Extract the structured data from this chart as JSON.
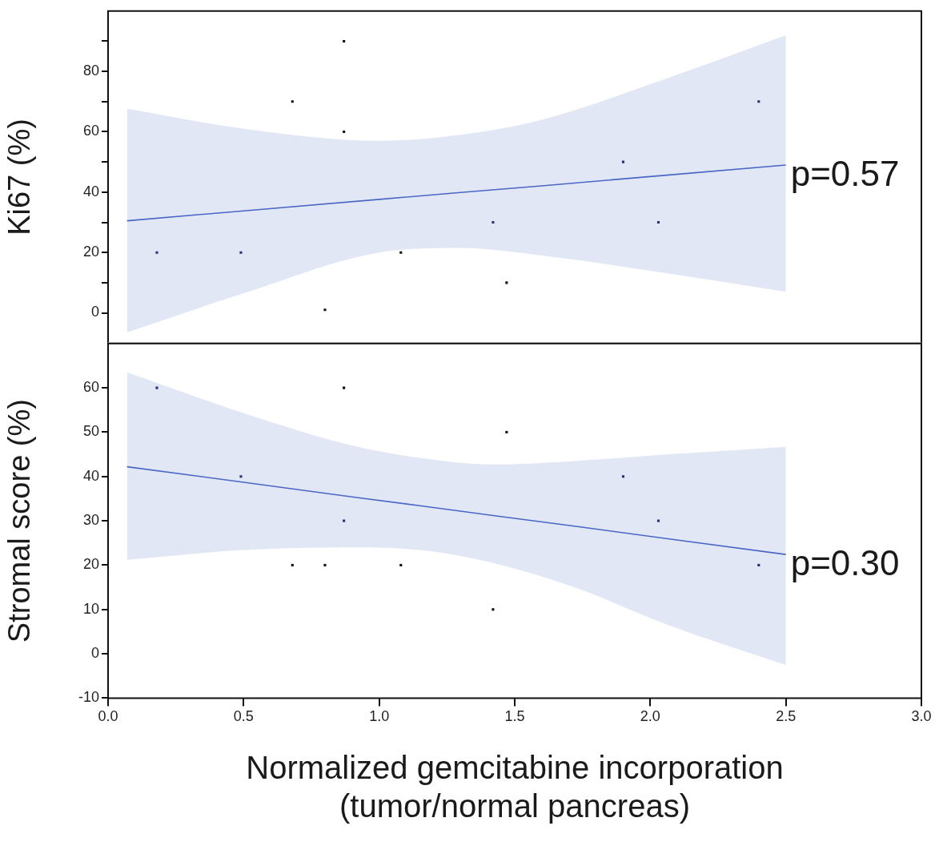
{
  "chart_data": [
    {
      "type": "scatter",
      "ylabel": "Ki67 (%)",
      "xlim": [
        0,
        3
      ],
      "ylim": [
        -10,
        100
      ],
      "yticks": [
        0,
        {
          "value": 10,
          "label": null
        },
        20,
        {
          "value": 30,
          "label": null
        },
        40,
        {
          "value": 50,
          "label": null
        },
        60,
        {
          "value": 70,
          "label": null
        },
        80,
        {
          "value": 90,
          "label": null
        }
      ],
      "tick_labels": "y",
      "grid": false,
      "legend": false,
      "series": [
        {
          "marker": "square",
          "x": [
            0.18,
            0.49,
            0.68,
            0.87,
            0.87,
            0.8,
            1.08,
            1.42,
            1.47,
            1.9,
            2.03,
            2.4
          ],
          "values": [
            20,
            20,
            70,
            90,
            60,
            1,
            20,
            30,
            10,
            50,
            30,
            70
          ],
          "colors": [
            "#2a2f7a",
            "#2a2f7a",
            "#111111",
            "#111111",
            "#111111",
            "#111111",
            "#111111",
            "#2a2f7a",
            "#111111",
            "#2a2f7a",
            "#2a2f7a",
            "#2a2f7a"
          ]
        },
        {
          "type": "line",
          "color": "#4a67c4",
          "x": [
            0.07,
            0.5,
            1.0,
            1.3,
            1.6,
            2.07,
            2.5
          ],
          "values": [
            30.5,
            33.8,
            37.6,
            39.9,
            42.1,
            45.7,
            49
          ],
          "lower": [
            -6.5,
            6.5,
            20,
            21.5,
            19,
            13,
            7
          ],
          "upper": [
            67.6,
            61,
            57,
            59,
            64,
            78,
            92
          ]
        }
      ],
      "annotations": [
        {
          "text": "p=0.57",
          "x": 2.5,
          "y": 49
        }
      ]
    },
    {
      "type": "scatter",
      "ylabel": "Stromal score (%)",
      "xlabel": "Normalized gemcitabine incorporation\n(tumor/normal pancreas)",
      "xlim": [
        0,
        3
      ],
      "xticks": [
        {
          "value": 0,
          "label": "0.0"
        },
        0.5,
        {
          "value": 1,
          "label": "1.0"
        },
        1.5,
        {
          "value": 2,
          "label": "2.0"
        },
        2.5,
        {
          "value": 3,
          "label": "3.0"
        }
      ],
      "ylim": [
        -10,
        70
      ],
      "yticks": [
        -10,
        0,
        10,
        20,
        30,
        40,
        50,
        60
      ],
      "grid": false,
      "legend": false,
      "series": [
        {
          "marker": "square",
          "x": [
            0.18,
            0.49,
            0.68,
            0.8,
            0.87,
            0.87,
            1.08,
            1.42,
            1.47,
            1.9,
            2.03,
            2.4
          ],
          "values": [
            60,
            40,
            20,
            20,
            60,
            30,
            20,
            10,
            50,
            40,
            30,
            20
          ],
          "colors": [
            "#2a2f7a",
            "#2a2f7a",
            "#111111",
            "#111111",
            "#111111",
            "#2a2f7a",
            "#111111",
            "#111111",
            "#111111",
            "#2a2f7a",
            "#2a2f7a",
            "#2a2f7a"
          ]
        },
        {
          "type": "line",
          "color": "#4a67c4",
          "x": [
            0.07,
            0.5,
            0.9,
            1.15,
            1.42,
            1.72,
            2.07,
            2.5
          ],
          "values": [
            42.2,
            38.7,
            35.4,
            33.4,
            31.2,
            28.8,
            25.9,
            22.4
          ],
          "lower": [
            21.2,
            23.4,
            24,
            23.4,
            20.5,
            15,
            6.4,
            -2.5
          ],
          "upper": [
            63.5,
            54.3,
            47,
            44.2,
            42.7,
            43.5,
            45,
            46.7
          ]
        }
      ],
      "annotations": [
        {
          "text": "p=0.30",
          "x": 2.5,
          "y": 22.4
        }
      ]
    }
  ]
}
